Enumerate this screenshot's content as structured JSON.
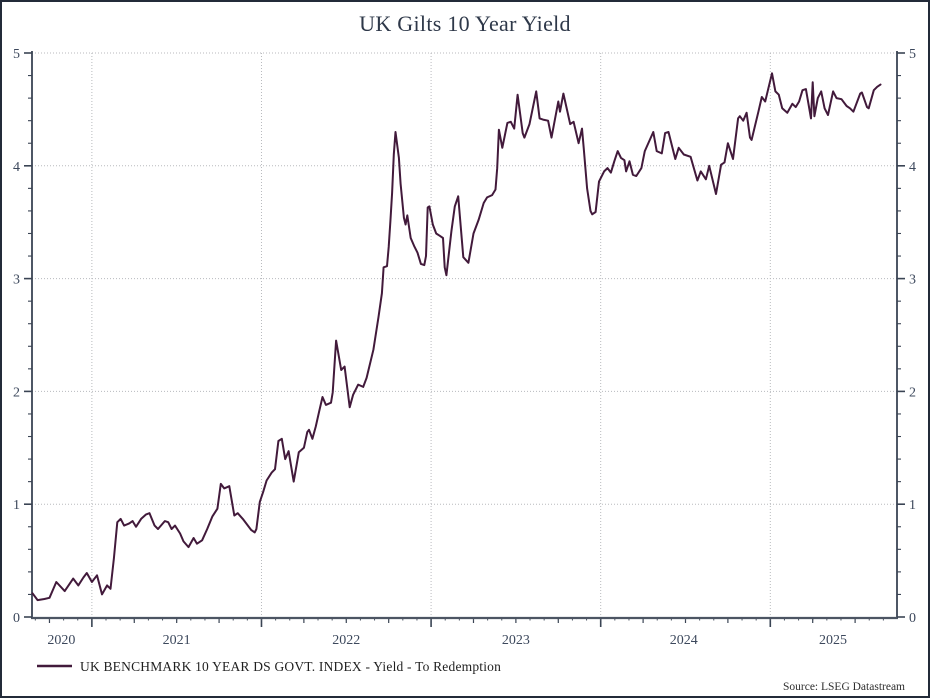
{
  "title": "UK Gilts 10 Year Yield",
  "legend": {
    "label": "UK BENCHMARK 10 YEAR DS GOVT. INDEX - Yield - To Redemption",
    "swatch_color": "#421a3b"
  },
  "source": "Source: LSEG Datastream",
  "colors": {
    "frame": "#232b39",
    "spine": "#3a4454",
    "bottom_axis": "#4c5563",
    "grid": "#b8babe",
    "line": "#421a3b",
    "tick_label": "#3c485c",
    "title": "#2e3849"
  },
  "chart_data": {
    "type": "line",
    "title": "UK Gilts 10 Year Yield",
    "xlabel": "",
    "ylabel": "",
    "xlim": [
      2020.647,
      2025.747
    ],
    "ylim": [
      0,
      5
    ],
    "y_ticks_major": [
      0,
      1,
      2,
      3,
      4,
      5
    ],
    "y_minor_step": 0.2,
    "x_ticks_major": [
      2021,
      2022,
      2023,
      2024,
      2025
    ],
    "x_quarter_step": 0.25,
    "x_month_step": 0.0833,
    "x_tick_labels": [
      {
        "label": "2020",
        "x": 2020.82
      },
      {
        "label": "2021",
        "x": 2021.5
      },
      {
        "label": "2022",
        "x": 2022.5
      },
      {
        "label": "2023",
        "x": 2023.5
      },
      {
        "label": "2024",
        "x": 2024.49
      },
      {
        "label": "2025",
        "x": 2025.37
      }
    ],
    "grid": "dotted-at-major",
    "legend_position": "bottom-left",
    "series": [
      {
        "name": "UK BENCHMARK 10 YEAR DS GOVT. INDEX - Yield - To Redemption",
        "color": "#421a3b",
        "points": [
          [
            2020.65,
            0.21
          ],
          [
            2020.68,
            0.15
          ],
          [
            2020.72,
            0.16
          ],
          [
            2020.75,
            0.17
          ],
          [
            2020.79,
            0.31
          ],
          [
            2020.84,
            0.23
          ],
          [
            2020.89,
            0.34
          ],
          [
            2020.92,
            0.28
          ],
          [
            2020.95,
            0.35
          ],
          [
            2020.97,
            0.39
          ],
          [
            2021.0,
            0.31
          ],
          [
            2021.03,
            0.37
          ],
          [
            2021.06,
            0.2
          ],
          [
            2021.09,
            0.28
          ],
          [
            2021.11,
            0.25
          ],
          [
            2021.13,
            0.52
          ],
          [
            2021.15,
            0.84
          ],
          [
            2021.17,
            0.87
          ],
          [
            2021.19,
            0.81
          ],
          [
            2021.22,
            0.83
          ],
          [
            2021.24,
            0.85
          ],
          [
            2021.26,
            0.8
          ],
          [
            2021.29,
            0.87
          ],
          [
            2021.32,
            0.91
          ],
          [
            2021.34,
            0.92
          ],
          [
            2021.37,
            0.81
          ],
          [
            2021.39,
            0.78
          ],
          [
            2021.43,
            0.85
          ],
          [
            2021.45,
            0.84
          ],
          [
            2021.47,
            0.78
          ],
          [
            2021.49,
            0.81
          ],
          [
            2021.52,
            0.74
          ],
          [
            2021.54,
            0.67
          ],
          [
            2021.57,
            0.62
          ],
          [
            2021.6,
            0.7
          ],
          [
            2021.62,
            0.65
          ],
          [
            2021.65,
            0.68
          ],
          [
            2021.68,
            0.78
          ],
          [
            2021.71,
            0.89
          ],
          [
            2021.74,
            0.96
          ],
          [
            2021.76,
            1.18
          ],
          [
            2021.78,
            1.14
          ],
          [
            2021.81,
            1.16
          ],
          [
            2021.84,
            0.9
          ],
          [
            2021.86,
            0.92
          ],
          [
            2021.89,
            0.87
          ],
          [
            2021.91,
            0.83
          ],
          [
            2021.94,
            0.77
          ],
          [
            2021.96,
            0.75
          ],
          [
            2021.97,
            0.78
          ],
          [
            2021.99,
            1.02
          ],
          [
            2022.01,
            1.11
          ],
          [
            2022.03,
            1.21
          ],
          [
            2022.06,
            1.28
          ],
          [
            2022.08,
            1.31
          ],
          [
            2022.1,
            1.56
          ],
          [
            2022.12,
            1.58
          ],
          [
            2022.14,
            1.4
          ],
          [
            2022.16,
            1.47
          ],
          [
            2022.19,
            1.2
          ],
          [
            2022.22,
            1.46
          ],
          [
            2022.25,
            1.5
          ],
          [
            2022.27,
            1.64
          ],
          [
            2022.28,
            1.66
          ],
          [
            2022.3,
            1.58
          ],
          [
            2022.32,
            1.69
          ],
          [
            2022.34,
            1.82
          ],
          [
            2022.36,
            1.95
          ],
          [
            2022.38,
            1.88
          ],
          [
            2022.41,
            1.9
          ],
          [
            2022.42,
            1.99
          ],
          [
            2022.44,
            2.45
          ],
          [
            2022.47,
            2.19
          ],
          [
            2022.49,
            2.22
          ],
          [
            2022.52,
            1.86
          ],
          [
            2022.54,
            1.97
          ],
          [
            2022.57,
            2.06
          ],
          [
            2022.6,
            2.04
          ],
          [
            2022.62,
            2.12
          ],
          [
            2022.66,
            2.37
          ],
          [
            2022.69,
            2.66
          ],
          [
            2022.71,
            2.87
          ],
          [
            2022.72,
            3.1
          ],
          [
            2022.74,
            3.11
          ],
          [
            2022.75,
            3.28
          ],
          [
            2022.76,
            3.51
          ],
          [
            2022.77,
            3.76
          ],
          [
            2022.78,
            4.1
          ],
          [
            2022.79,
            4.3
          ],
          [
            2022.81,
            4.07
          ],
          [
            2022.82,
            3.84
          ],
          [
            2022.84,
            3.54
          ],
          [
            2022.85,
            3.48
          ],
          [
            2022.86,
            3.56
          ],
          [
            2022.88,
            3.36
          ],
          [
            2022.9,
            3.29
          ],
          [
            2022.92,
            3.23
          ],
          [
            2022.94,
            3.13
          ],
          [
            2022.96,
            3.12
          ],
          [
            2022.97,
            3.2
          ],
          [
            2022.98,
            3.63
          ],
          [
            2022.99,
            3.64
          ],
          [
            2023.01,
            3.48
          ],
          [
            2023.03,
            3.4
          ],
          [
            2023.05,
            3.38
          ],
          [
            2023.07,
            3.36
          ],
          [
            2023.08,
            3.1
          ],
          [
            2023.09,
            3.03
          ],
          [
            2023.12,
            3.42
          ],
          [
            2023.14,
            3.64
          ],
          [
            2023.16,
            3.73
          ],
          [
            2023.19,
            3.19
          ],
          [
            2023.22,
            3.14
          ],
          [
            2023.25,
            3.4
          ],
          [
            2023.28,
            3.52
          ],
          [
            2023.31,
            3.67
          ],
          [
            2023.33,
            3.72
          ],
          [
            2023.36,
            3.74
          ],
          [
            2023.38,
            3.79
          ],
          [
            2023.39,
            3.98
          ],
          [
            2023.4,
            4.32
          ],
          [
            2023.42,
            4.16
          ],
          [
            2023.45,
            4.38
          ],
          [
            2023.47,
            4.39
          ],
          [
            2023.49,
            4.33
          ],
          [
            2023.51,
            4.63
          ],
          [
            2023.54,
            4.29
          ],
          [
            2023.55,
            4.25
          ],
          [
            2023.58,
            4.37
          ],
          [
            2023.62,
            4.66
          ],
          [
            2023.64,
            4.42
          ],
          [
            2023.66,
            4.41
          ],
          [
            2023.69,
            4.4
          ],
          [
            2023.71,
            4.25
          ],
          [
            2023.75,
            4.57
          ],
          [
            2023.76,
            4.48
          ],
          [
            2023.78,
            4.64
          ],
          [
            2023.82,
            4.37
          ],
          [
            2023.84,
            4.39
          ],
          [
            2023.87,
            4.2
          ],
          [
            2023.89,
            4.33
          ],
          [
            2023.9,
            4.16
          ],
          [
            2023.92,
            3.8
          ],
          [
            2023.94,
            3.6
          ],
          [
            2023.95,
            3.57
          ],
          [
            2023.97,
            3.59
          ],
          [
            2023.99,
            3.86
          ],
          [
            2024.02,
            3.95
          ],
          [
            2024.04,
            3.98
          ],
          [
            2024.06,
            3.94
          ],
          [
            2024.08,
            4.04
          ],
          [
            2024.1,
            4.13
          ],
          [
            2024.12,
            4.07
          ],
          [
            2024.14,
            4.05
          ],
          [
            2024.15,
            3.95
          ],
          [
            2024.17,
            4.04
          ],
          [
            2024.19,
            3.92
          ],
          [
            2024.21,
            3.91
          ],
          [
            2024.24,
            3.98
          ],
          [
            2024.26,
            4.13
          ],
          [
            2024.31,
            4.3
          ],
          [
            2024.33,
            4.13
          ],
          [
            2024.36,
            4.11
          ],
          [
            2024.38,
            4.29
          ],
          [
            2024.4,
            4.3
          ],
          [
            2024.44,
            4.06
          ],
          [
            2024.46,
            4.16
          ],
          [
            2024.49,
            4.1
          ],
          [
            2024.53,
            4.08
          ],
          [
            2024.57,
            3.87
          ],
          [
            2024.59,
            3.95
          ],
          [
            2024.62,
            3.88
          ],
          [
            2024.64,
            4.0
          ],
          [
            2024.68,
            3.75
          ],
          [
            2024.71,
            4.01
          ],
          [
            2024.73,
            4.03
          ],
          [
            2024.75,
            4.2
          ],
          [
            2024.78,
            4.06
          ],
          [
            2024.81,
            4.42
          ],
          [
            2024.82,
            4.44
          ],
          [
            2024.84,
            4.4
          ],
          [
            2024.86,
            4.47
          ],
          [
            2024.88,
            4.25
          ],
          [
            2024.89,
            4.23
          ],
          [
            2024.93,
            4.48
          ],
          [
            2024.95,
            4.61
          ],
          [
            2024.97,
            4.57
          ],
          [
            2025.01,
            4.82
          ],
          [
            2025.03,
            4.66
          ],
          [
            2025.05,
            4.63
          ],
          [
            2025.07,
            4.51
          ],
          [
            2025.1,
            4.47
          ],
          [
            2025.13,
            4.55
          ],
          [
            2025.15,
            4.52
          ],
          [
            2025.17,
            4.57
          ],
          [
            2025.19,
            4.67
          ],
          [
            2025.21,
            4.68
          ],
          [
            2025.24,
            4.42
          ],
          [
            2025.25,
            4.74
          ],
          [
            2025.26,
            4.44
          ],
          [
            2025.28,
            4.6
          ],
          [
            2025.3,
            4.66
          ],
          [
            2025.32,
            4.51
          ],
          [
            2025.34,
            4.45
          ],
          [
            2025.37,
            4.66
          ],
          [
            2025.39,
            4.6
          ],
          [
            2025.42,
            4.59
          ],
          [
            2025.45,
            4.53
          ],
          [
            2025.47,
            4.51
          ],
          [
            2025.49,
            4.48
          ],
          [
            2025.53,
            4.64
          ],
          [
            2025.54,
            4.65
          ],
          [
            2025.57,
            4.52
          ],
          [
            2025.58,
            4.51
          ],
          [
            2025.61,
            4.67
          ],
          [
            2025.63,
            4.7
          ],
          [
            2025.65,
            4.72
          ]
        ]
      }
    ]
  }
}
